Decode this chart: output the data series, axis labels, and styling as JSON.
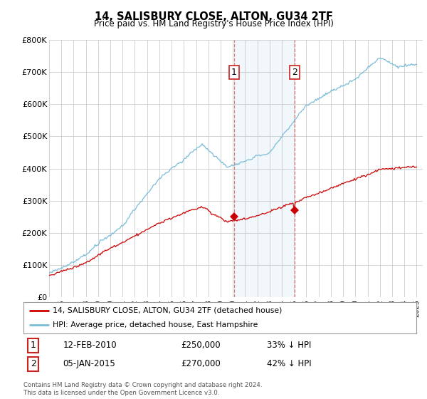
{
  "title": "14, SALISBURY CLOSE, ALTON, GU34 2TF",
  "subtitle": "Price paid vs. HM Land Registry's House Price Index (HPI)",
  "ylabel_ticks": [
    "£0",
    "£100K",
    "£200K",
    "£300K",
    "£400K",
    "£500K",
    "£600K",
    "£700K",
    "£800K"
  ],
  "ylabel_values": [
    0,
    100000,
    200000,
    300000,
    400000,
    500000,
    600000,
    700000,
    800000
  ],
  "ylim": [
    0,
    800000
  ],
  "xlim_start": 1995.0,
  "xlim_end": 2025.5,
  "x_ticks": [
    1995,
    1996,
    1997,
    1998,
    1999,
    2000,
    2001,
    2002,
    2003,
    2004,
    2005,
    2006,
    2007,
    2008,
    2009,
    2010,
    2011,
    2012,
    2013,
    2014,
    2015,
    2016,
    2017,
    2018,
    2019,
    2020,
    2021,
    2022,
    2023,
    2024,
    2025
  ],
  "hpi_color": "#7abcd8",
  "price_color": "#cc0000",
  "purchase1_x": 2010.11,
  "purchase1_y": 250000,
  "purchase2_x": 2015.02,
  "purchase2_y": 270000,
  "shade_x1": 2010.11,
  "shade_x2": 2015.02,
  "legend_label1": "14, SALISBURY CLOSE, ALTON, GU34 2TF (detached house)",
  "legend_label2": "HPI: Average price, detached house, East Hampshire",
  "table_row1": [
    "1",
    "12-FEB-2010",
    "£250,000",
    "33% ↓ HPI"
  ],
  "table_row2": [
    "2",
    "05-JAN-2015",
    "£270,000",
    "42% ↓ HPI"
  ],
  "footnote": "Contains HM Land Registry data © Crown copyright and database right 2024.\nThis data is licensed under the Open Government Licence v3.0.",
  "background_color": "#ffffff",
  "grid_color": "#cccccc"
}
